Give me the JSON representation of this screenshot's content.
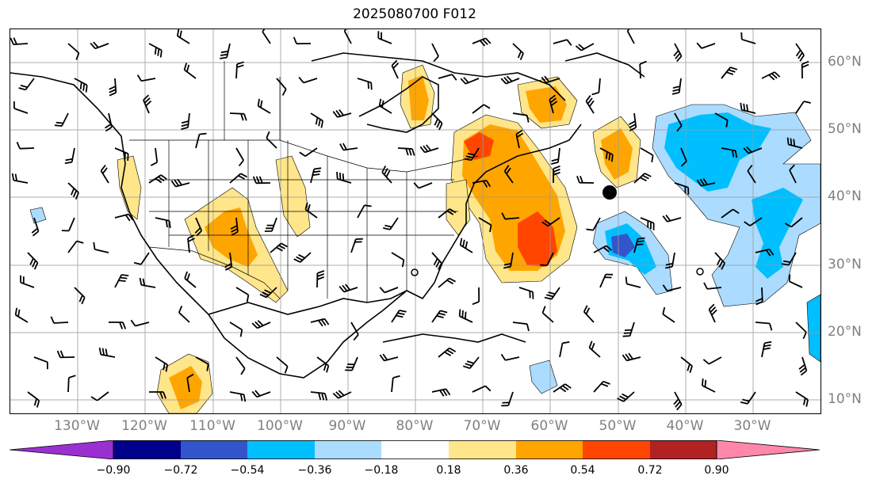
{
  "title": "2025080700 F012",
  "lon_labels": [
    "130°W",
    "120°W",
    "110°W",
    "100°W",
    "90°W",
    "80°W",
    "70°W",
    "60°W",
    "50°W",
    "40°W",
    "30°W"
  ],
  "lat_labels": [
    "60°N",
    "50°N",
    "40°N",
    "30°N",
    "20°N",
    "10°N"
  ],
  "colorbar": {
    "ticks": [
      "−0.90",
      "−0.72",
      "−0.54",
      "−0.36",
      "−0.18",
      "0.18",
      "0.36",
      "0.54",
      "0.72",
      "0.90"
    ],
    "colors": [
      "#9b30d0",
      "#00008b",
      "#3355cc",
      "#00bfff",
      "#abdcff",
      "#ffffff",
      "#ffe68a",
      "#ffa500",
      "#ff4500",
      "#b22222",
      "#ff88aa"
    ]
  },
  "colors": {
    "pos1": "#ffe68a",
    "pos2": "#ffa500",
    "pos3": "#ff4500",
    "neg1": "#abdcff",
    "neg2": "#00bfff",
    "neg3": "#3355cc"
  }
}
